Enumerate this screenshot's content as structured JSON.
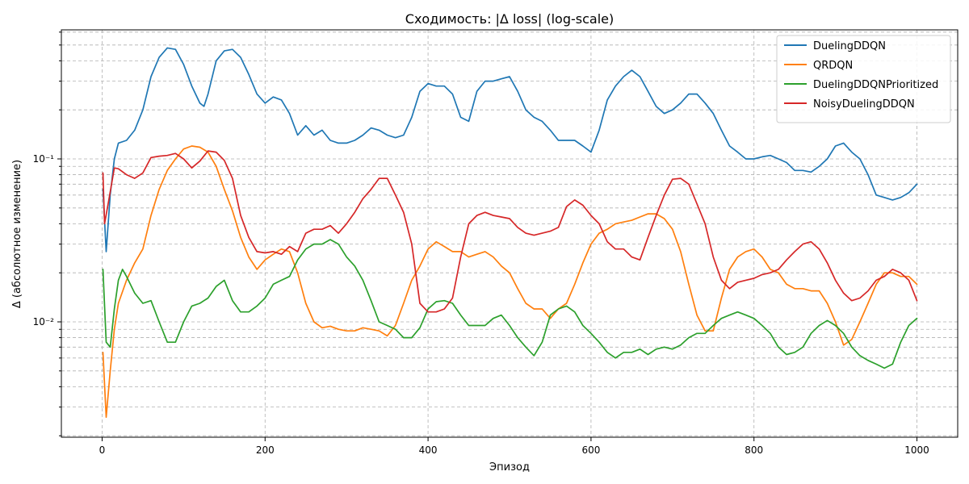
{
  "chart_data": {
    "type": "line",
    "title": "Сходимость: |Δ loss| (log-scale)",
    "xlabel": "Эпизод",
    "ylabel": "Δ (абсолютное изменение)",
    "x_ticks": [
      0,
      200,
      400,
      600,
      800,
      1000
    ],
    "x_tick_labels": [
      "0",
      "200",
      "400",
      "600",
      "800",
      "1000"
    ],
    "y_ticks_major": [
      0.01,
      0.1
    ],
    "y_tick_labels": [
      "10⁻²",
      "10⁻¹"
    ],
    "xlim": [
      -50,
      1050
    ],
    "ylim": [
      0.0019,
      0.62
    ],
    "yscale": "log",
    "grid": true,
    "legend_position": "top-right",
    "series": [
      {
        "name": "DuelingDDQN",
        "color": "#1f77b4",
        "x": [
          1,
          5,
          10,
          15,
          20,
          30,
          40,
          50,
          60,
          70,
          80,
          90,
          100,
          110,
          120,
          125,
          130,
          140,
          150,
          160,
          170,
          180,
          190,
          200,
          210,
          220,
          230,
          240,
          250,
          260,
          270,
          280,
          290,
          300,
          310,
          320,
          330,
          340,
          350,
          360,
          370,
          380,
          390,
          400,
          410,
          420,
          430,
          440,
          450,
          460,
          470,
          480,
          490,
          500,
          510,
          520,
          530,
          540,
          550,
          560,
          570,
          580,
          590,
          600,
          610,
          620,
          630,
          640,
          650,
          660,
          670,
          680,
          690,
          700,
          710,
          720,
          730,
          740,
          750,
          760,
          770,
          780,
          790,
          800,
          810,
          820,
          830,
          840,
          850,
          860,
          870,
          880,
          890,
          900,
          910,
          920,
          930,
          940,
          950,
          960,
          970,
          980,
          990,
          1000
        ],
        "y": [
          0.065,
          0.027,
          0.06,
          0.1,
          0.125,
          0.13,
          0.15,
          0.2,
          0.32,
          0.42,
          0.48,
          0.47,
          0.38,
          0.28,
          0.22,
          0.21,
          0.25,
          0.4,
          0.46,
          0.47,
          0.42,
          0.33,
          0.25,
          0.22,
          0.24,
          0.23,
          0.19,
          0.14,
          0.16,
          0.14,
          0.15,
          0.13,
          0.125,
          0.125,
          0.13,
          0.14,
          0.155,
          0.15,
          0.14,
          0.135,
          0.14,
          0.18,
          0.26,
          0.29,
          0.28,
          0.28,
          0.25,
          0.18,
          0.17,
          0.26,
          0.3,
          0.3,
          0.31,
          0.32,
          0.26,
          0.2,
          0.18,
          0.17,
          0.15,
          0.13,
          0.13,
          0.13,
          0.12,
          0.11,
          0.15,
          0.23,
          0.28,
          0.32,
          0.35,
          0.32,
          0.26,
          0.21,
          0.19,
          0.2,
          0.22,
          0.25,
          0.25,
          0.22,
          0.19,
          0.15,
          0.12,
          0.11,
          0.1,
          0.1,
          0.103,
          0.105,
          0.1,
          0.095,
          0.085,
          0.085,
          0.083,
          0.09,
          0.1,
          0.12,
          0.125,
          0.11,
          0.1,
          0.08,
          0.06,
          0.058,
          0.056,
          0.058,
          0.062,
          0.07
        ]
      },
      {
        "name": "QRDQN",
        "color": "#ff7f0e",
        "x": [
          1,
          5,
          10,
          15,
          20,
          30,
          40,
          50,
          60,
          70,
          80,
          90,
          100,
          110,
          120,
          130,
          140,
          150,
          160,
          170,
          180,
          190,
          200,
          210,
          220,
          230,
          240,
          250,
          260,
          270,
          280,
          290,
          300,
          310,
          320,
          330,
          340,
          350,
          360,
          370,
          380,
          390,
          400,
          410,
          420,
          430,
          440,
          450,
          460,
          470,
          480,
          490,
          500,
          510,
          520,
          530,
          540,
          550,
          560,
          570,
          580,
          590,
          600,
          610,
          620,
          630,
          640,
          650,
          660,
          670,
          680,
          690,
          700,
          710,
          720,
          730,
          740,
          750,
          760,
          770,
          780,
          790,
          800,
          810,
          820,
          830,
          840,
          850,
          860,
          870,
          880,
          890,
          900,
          910,
          920,
          930,
          940,
          950,
          960,
          970,
          980,
          990,
          1000
        ],
        "y": [
          0.0065,
          0.0026,
          0.005,
          0.009,
          0.013,
          0.018,
          0.023,
          0.028,
          0.045,
          0.065,
          0.085,
          0.1,
          0.115,
          0.12,
          0.118,
          0.11,
          0.09,
          0.065,
          0.048,
          0.033,
          0.025,
          0.021,
          0.024,
          0.026,
          0.028,
          0.027,
          0.02,
          0.013,
          0.01,
          0.0092,
          0.0094,
          0.009,
          0.0088,
          0.0088,
          0.0092,
          0.009,
          0.0088,
          0.0082,
          0.0095,
          0.013,
          0.018,
          0.022,
          0.028,
          0.031,
          0.029,
          0.027,
          0.027,
          0.025,
          0.026,
          0.027,
          0.025,
          0.022,
          0.02,
          0.016,
          0.013,
          0.012,
          0.012,
          0.0105,
          0.012,
          0.013,
          0.017,
          0.023,
          0.03,
          0.035,
          0.037,
          0.04,
          0.041,
          0.042,
          0.044,
          0.046,
          0.046,
          0.043,
          0.037,
          0.027,
          0.017,
          0.011,
          0.0088,
          0.0088,
          0.014,
          0.021,
          0.025,
          0.027,
          0.028,
          0.025,
          0.021,
          0.02,
          0.017,
          0.016,
          0.016,
          0.0155,
          0.0155,
          0.013,
          0.01,
          0.0072,
          0.0078,
          0.01,
          0.013,
          0.017,
          0.02,
          0.02,
          0.019,
          0.019,
          0.017
        ]
      },
      {
        "name": "DuelingDDQNPrioritized",
        "color": "#2ca02c",
        "x": [
          1,
          5,
          10,
          15,
          20,
          25,
          30,
          40,
          50,
          60,
          70,
          80,
          90,
          100,
          110,
          120,
          130,
          140,
          150,
          160,
          170,
          180,
          190,
          200,
          210,
          220,
          230,
          240,
          250,
          260,
          270,
          280,
          290,
          300,
          310,
          320,
          330,
          340,
          350,
          360,
          370,
          380,
          390,
          400,
          410,
          420,
          430,
          440,
          450,
          460,
          470,
          480,
          490,
          500,
          510,
          520,
          530,
          540,
          550,
          560,
          570,
          580,
          590,
          600,
          610,
          620,
          630,
          640,
          650,
          660,
          670,
          680,
          690,
          700,
          710,
          720,
          730,
          740,
          750,
          760,
          770,
          780,
          790,
          800,
          810,
          820,
          830,
          840,
          850,
          860,
          870,
          880,
          890,
          900,
          910,
          920,
          930,
          940,
          950,
          960,
          970,
          980,
          990,
          1000
        ],
        "y": [
          0.021,
          0.0075,
          0.007,
          0.012,
          0.018,
          0.021,
          0.019,
          0.015,
          0.013,
          0.0135,
          0.01,
          0.0075,
          0.0075,
          0.01,
          0.0125,
          0.013,
          0.014,
          0.0165,
          0.018,
          0.0135,
          0.0115,
          0.0115,
          0.0125,
          0.014,
          0.017,
          0.018,
          0.019,
          0.024,
          0.028,
          0.03,
          0.03,
          0.032,
          0.03,
          0.025,
          0.022,
          0.018,
          0.0135,
          0.01,
          0.0095,
          0.009,
          0.008,
          0.008,
          0.0092,
          0.012,
          0.0133,
          0.0135,
          0.013,
          0.011,
          0.0095,
          0.0095,
          0.0095,
          0.0105,
          0.011,
          0.0095,
          0.008,
          0.007,
          0.0062,
          0.0075,
          0.011,
          0.012,
          0.0125,
          0.0115,
          0.0095,
          0.0085,
          0.0075,
          0.0065,
          0.006,
          0.0065,
          0.0065,
          0.0068,
          0.0063,
          0.0068,
          0.007,
          0.0068,
          0.0072,
          0.008,
          0.0085,
          0.0085,
          0.0095,
          0.0105,
          0.011,
          0.0115,
          0.011,
          0.0105,
          0.0095,
          0.0085,
          0.007,
          0.0063,
          0.0065,
          0.007,
          0.0085,
          0.0095,
          0.0102,
          0.0095,
          0.0085,
          0.007,
          0.0062,
          0.0058,
          0.0055,
          0.0052,
          0.0055,
          0.0075,
          0.0095,
          0.0105
        ]
      },
      {
        "name": "NoisyDuelingDDQN",
        "color": "#d62728",
        "x": [
          1,
          3,
          8,
          15,
          20,
          30,
          40,
          50,
          60,
          70,
          80,
          90,
          100,
          110,
          120,
          130,
          140,
          150,
          160,
          170,
          180,
          190,
          200,
          210,
          220,
          230,
          240,
          250,
          260,
          270,
          280,
          290,
          300,
          310,
          320,
          330,
          340,
          350,
          360,
          370,
          380,
          390,
          400,
          410,
          420,
          430,
          440,
          450,
          460,
          470,
          480,
          490,
          500,
          510,
          520,
          530,
          540,
          550,
          560,
          570,
          580,
          590,
          600,
          610,
          620,
          630,
          640,
          650,
          660,
          670,
          680,
          690,
          700,
          710,
          720,
          730,
          740,
          750,
          760,
          770,
          780,
          790,
          800,
          810,
          820,
          830,
          840,
          850,
          860,
          870,
          880,
          890,
          900,
          910,
          920,
          930,
          940,
          950,
          960,
          970,
          980,
          990,
          1000
        ],
        "y": [
          0.082,
          0.04,
          0.055,
          0.088,
          0.087,
          0.08,
          0.076,
          0.082,
          0.102,
          0.104,
          0.105,
          0.108,
          0.1,
          0.088,
          0.097,
          0.112,
          0.11,
          0.098,
          0.076,
          0.045,
          0.033,
          0.027,
          0.0265,
          0.027,
          0.026,
          0.029,
          0.027,
          0.035,
          0.037,
          0.037,
          0.039,
          0.035,
          0.04,
          0.047,
          0.057,
          0.065,
          0.076,
          0.076,
          0.06,
          0.047,
          0.03,
          0.013,
          0.0115,
          0.0115,
          0.012,
          0.014,
          0.025,
          0.04,
          0.045,
          0.047,
          0.045,
          0.044,
          0.043,
          0.038,
          0.035,
          0.034,
          0.035,
          0.036,
          0.038,
          0.051,
          0.056,
          0.052,
          0.045,
          0.04,
          0.031,
          0.028,
          0.028,
          0.025,
          0.024,
          0.033,
          0.045,
          0.06,
          0.075,
          0.076,
          0.07,
          0.053,
          0.04,
          0.025,
          0.018,
          0.016,
          0.0175,
          0.018,
          0.0185,
          0.0195,
          0.02,
          0.021,
          0.024,
          0.027,
          0.03,
          0.031,
          0.028,
          0.023,
          0.018,
          0.015,
          0.0135,
          0.014,
          0.0155,
          0.018,
          0.019,
          0.021,
          0.02,
          0.018,
          0.0135
        ]
      }
    ]
  }
}
